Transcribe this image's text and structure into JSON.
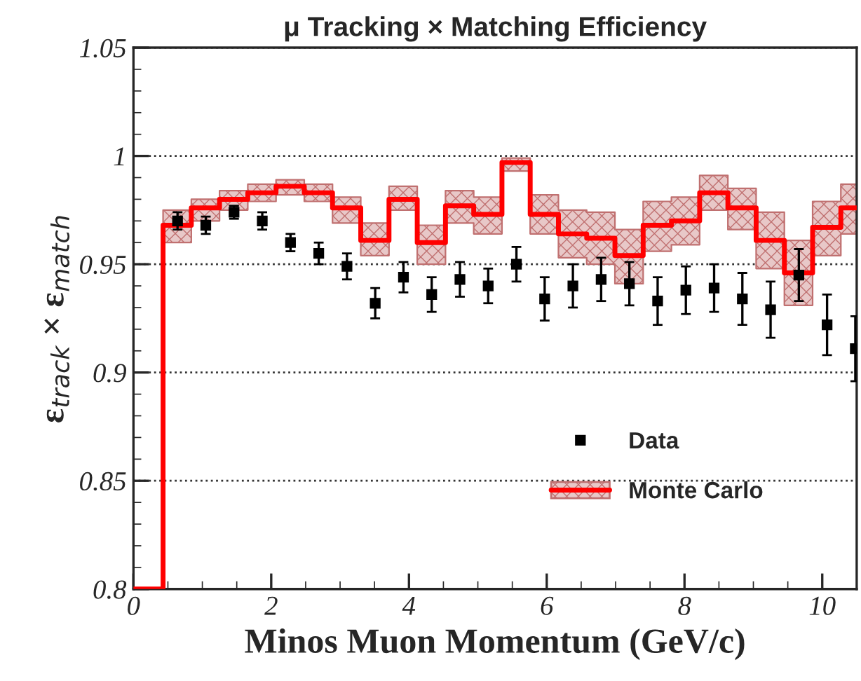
{
  "chart_data": {
    "type": "scatter",
    "title": "μ Tracking × Matching Efficiency",
    "xlabel": "Minos Muon Momentum (GeV/c)",
    "ylabel": "ε$_{track}$ × ε$_{match}$",
    "xlim": [
      0,
      10.5
    ],
    "xticks": [
      0,
      2,
      4,
      6,
      8,
      10
    ],
    "ylim": [
      0.8,
      1.05
    ],
    "yticks": [
      {
        "value": 0.8,
        "label": "0.8"
      },
      {
        "value": 0.85,
        "label": "0.85"
      },
      {
        "value": 0.9,
        "label": "0.9"
      },
      {
        "value": 0.95,
        "label": "0.95"
      },
      {
        "value": 1,
        "label": "1"
      },
      {
        "value": 1.05,
        "label": "1.05"
      }
    ],
    "grid": "y",
    "legend": "bottom right",
    "series": [
      {
        "name": "Data",
        "marker": "square",
        "color": "#000000",
        "x": [
          0.64,
          1.05,
          1.46,
          1.87,
          2.28,
          2.69,
          3.1,
          3.51,
          3.92,
          4.33,
          4.74,
          5.15,
          5.56,
          5.97,
          6.38,
          6.79,
          7.2,
          7.61,
          8.02,
          8.43,
          8.84,
          9.25,
          9.66,
          10.07,
          10.48
        ],
        "values": [
          0.97,
          0.968,
          0.974,
          0.97,
          0.96,
          0.955,
          0.949,
          0.932,
          0.944,
          0.936,
          0.943,
          0.94,
          0.95,
          0.934,
          0.94,
          0.943,
          0.941,
          0.933,
          0.938,
          0.939,
          0.934,
          0.929,
          0.945,
          0.922,
          0.911
        ],
        "errors": [
          0.004,
          0.004,
          0.003,
          0.004,
          0.004,
          0.005,
          0.006,
          0.007,
          0.007,
          0.008,
          0.008,
          0.008,
          0.008,
          0.01,
          0.01,
          0.01,
          0.01,
          0.011,
          0.011,
          0.011,
          0.012,
          0.013,
          0.012,
          0.014,
          0.015
        ]
      },
      {
        "name": "Monte Carlo",
        "type": "step",
        "color": "#ff0000",
        "x": [
          0,
          0.43,
          0.84,
          1.25,
          1.66,
          2.07,
          2.48,
          2.89,
          3.3,
          3.71,
          4.12,
          4.53,
          4.94,
          5.35,
          5.76,
          6.17,
          6.58,
          6.99,
          7.4,
          7.81,
          8.22,
          8.63,
          9.04,
          9.45,
          9.86,
          10.27,
          10.5
        ],
        "values": [
          0.8,
          0.968,
          0.976,
          0.98,
          0.983,
          0.986,
          0.983,
          0.976,
          0.961,
          0.98,
          0.96,
          0.977,
          0.973,
          0.997,
          0.973,
          0.964,
          0.962,
          0.954,
          0.968,
          0.97,
          0.983,
          0.976,
          0.961,
          0.946,
          0.967,
          0.976,
          0.976
        ],
        "lower": [
          null,
          0.96,
          0.97,
          0.975,
          0.979,
          0.982,
          0.979,
          0.969,
          0.954,
          0.975,
          0.95,
          0.969,
          0.964,
          0.993,
          0.964,
          0.953,
          0.95,
          0.941,
          0.956,
          0.959,
          0.975,
          0.966,
          0.948,
          0.931,
          0.954,
          0.964,
          0.964
        ],
        "upper": [
          null,
          0.975,
          0.98,
          0.984,
          0.987,
          0.989,
          0.987,
          0.981,
          0.969,
          0.986,
          0.968,
          0.984,
          0.981,
          0.999,
          0.982,
          0.975,
          0.974,
          0.966,
          0.979,
          0.981,
          0.991,
          0.985,
          0.974,
          0.961,
          0.979,
          0.987,
          0.987
        ]
      }
    ]
  }
}
